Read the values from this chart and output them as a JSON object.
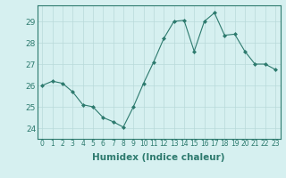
{
  "x": [
    0,
    1,
    2,
    3,
    4,
    5,
    6,
    7,
    8,
    9,
    10,
    11,
    12,
    13,
    14,
    15,
    16,
    17,
    18,
    19,
    20,
    21,
    22,
    23
  ],
  "y": [
    26.0,
    26.2,
    26.1,
    25.7,
    25.1,
    25.0,
    24.5,
    24.3,
    24.05,
    25.0,
    26.1,
    27.1,
    28.2,
    29.0,
    29.05,
    27.6,
    29.0,
    29.4,
    28.35,
    28.4,
    27.6,
    27.0,
    27.0,
    26.75
  ],
  "line_color": "#2d7a6e",
  "marker": "D",
  "marker_size": 2.0,
  "bg_color": "#d6f0f0",
  "grid_color": "#b8dada",
  "xlabel": "Humidex (Indice chaleur)",
  "xlim": [
    -0.5,
    23.5
  ],
  "ylim": [
    23.5,
    29.75
  ],
  "yticks": [
    24,
    25,
    26,
    27,
    28,
    29
  ],
  "xticks": [
    0,
    1,
    2,
    3,
    4,
    5,
    6,
    7,
    8,
    9,
    10,
    11,
    12,
    13,
    14,
    15,
    16,
    17,
    18,
    19,
    20,
    21,
    22,
    23
  ],
  "xlabel_fontsize": 7.5,
  "ytick_fontsize": 6.5,
  "xtick_fontsize": 5.5,
  "tick_color": "#2d7a6e",
  "spine_color": "#2d7a6e"
}
